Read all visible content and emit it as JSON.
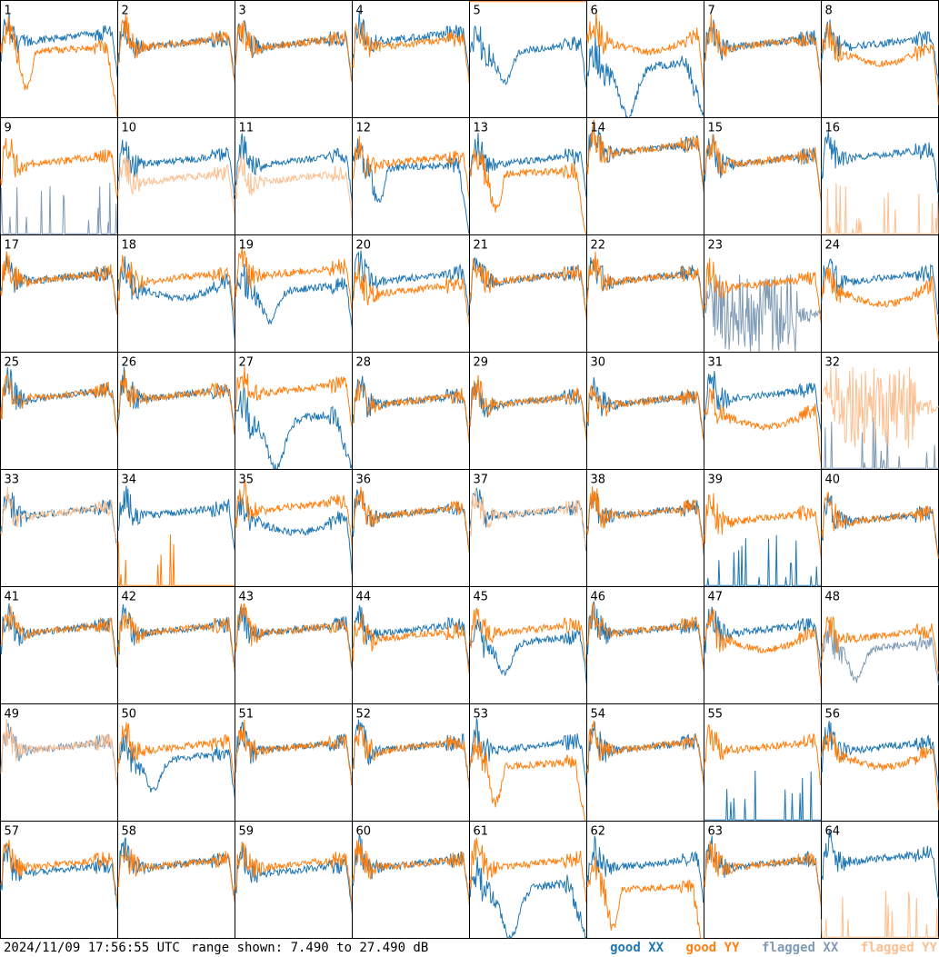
{
  "footer": {
    "timestamp": "2024/11/09 17:56:55 UTC",
    "range": "range shown: 7.490 to 27.490 dB"
  },
  "colors": {
    "good_xx": "#1f77b4",
    "good_yy": "#ff7f0e",
    "flagged_xx": "#7f9bb5",
    "flagged_yy": "#fdbf8f",
    "frame": "#000000"
  },
  "chart_data": {
    "type": "line",
    "title": "",
    "xlabel": "",
    "ylabel": "",
    "ylim": [
      7.49,
      27.49
    ],
    "grid": "8x8 small multiples, no gridlines",
    "legend": [
      {
        "key": "good_xx",
        "label": "good XX"
      },
      {
        "key": "good_yy",
        "label": "good YY"
      },
      {
        "key": "flagged_xx",
        "label": "flagged XX"
      },
      {
        "key": "flagged_yy",
        "label": "flagged YY"
      }
    ],
    "panels": [
      {
        "n": "1",
        "xx": "good",
        "yy": "good",
        "xx_shape": "nominal",
        "yy_shape": "droop_deep",
        "xx_level": 21,
        "yy_level": 19
      },
      {
        "n": "2",
        "xx": "good",
        "yy": "good",
        "xx_shape": "nominal",
        "yy_shape": "nominal",
        "xx_level": 20,
        "yy_level": 20
      },
      {
        "n": "3",
        "xx": "good",
        "yy": "good",
        "xx_shape": "nominal",
        "yy_shape": "nominal",
        "xx_level": 20,
        "yy_level": 20
      },
      {
        "n": "4",
        "xx": "good",
        "yy": "good",
        "xx_shape": "nominal",
        "yy_shape": "nominal",
        "xx_level": 21,
        "yy_level": 20
      },
      {
        "n": "5",
        "xx": "good",
        "yy": "good",
        "xx_shape": "dip",
        "yy_shape": "flat_top",
        "xx_level": 19,
        "yy_level": 27.3
      },
      {
        "n": "6",
        "xx": "good",
        "yy": "good",
        "xx_shape": "dip_deep",
        "yy_shape": "droop",
        "xx_level": 16,
        "yy_level": 21
      },
      {
        "n": "7",
        "xx": "good",
        "yy": "good",
        "xx_shape": "nominal",
        "yy_shape": "nominal",
        "xx_level": 20,
        "yy_level": 20
      },
      {
        "n": "8",
        "xx": "good",
        "yy": "good",
        "xx_shape": "nominal",
        "yy_shape": "droop",
        "xx_level": 20,
        "yy_level": 19
      },
      {
        "n": "9",
        "xx": "flagged",
        "yy": "good",
        "xx_shape": "spikes_low",
        "yy_shape": "nominal",
        "xx_level": 9,
        "yy_level": 20
      },
      {
        "n": "10",
        "xx": "good",
        "yy": "flagged",
        "xx_shape": "nominal",
        "yy_shape": "nominal",
        "xx_level": 20,
        "yy_level": 17
      },
      {
        "n": "11",
        "xx": "good",
        "yy": "flagged",
        "xx_shape": "nominal",
        "yy_shape": "nominal",
        "xx_level": 20,
        "yy_level": 17
      },
      {
        "n": "12",
        "xx": "good",
        "yy": "good",
        "xx_shape": "droop_deep",
        "yy_shape": "nominal",
        "xx_level": 19,
        "yy_level": 20
      },
      {
        "n": "13",
        "xx": "good",
        "yy": "good",
        "xx_shape": "nominal",
        "yy_shape": "droop_deep",
        "xx_level": 20,
        "yy_level": 18
      },
      {
        "n": "14",
        "xx": "good",
        "yy": "good",
        "xx_shape": "nominal",
        "yy_shape": "nominal",
        "xx_level": 22,
        "yy_level": 22
      },
      {
        "n": "15",
        "xx": "good",
        "yy": "good",
        "xx_shape": "nominal",
        "yy_shape": "nominal",
        "xx_level": 20,
        "yy_level": 20
      },
      {
        "n": "16",
        "xx": "good",
        "yy": "flagged",
        "xx_shape": "nominal",
        "yy_shape": "spikes_low",
        "xx_level": 21,
        "yy_level": 9
      },
      {
        "n": "17",
        "xx": "good",
        "yy": "good",
        "xx_shape": "nominal",
        "yy_shape": "nominal",
        "xx_level": 20,
        "yy_level": 20
      },
      {
        "n": "18",
        "xx": "good",
        "yy": "good",
        "xx_shape": "droop",
        "yy_shape": "nominal",
        "xx_level": 19,
        "yy_level": 20
      },
      {
        "n": "19",
        "xx": "good",
        "yy": "good",
        "xx_shape": "dip",
        "yy_shape": "nominal",
        "xx_level": 18,
        "yy_level": 21
      },
      {
        "n": "20",
        "xx": "good",
        "yy": "good",
        "xx_shape": "nominal",
        "yy_shape": "nominal",
        "xx_level": 20,
        "yy_level": 18
      },
      {
        "n": "21",
        "xx": "good",
        "yy": "good",
        "xx_shape": "nominal",
        "yy_shape": "nominal",
        "xx_level": 20,
        "yy_level": 20
      },
      {
        "n": "22",
        "xx": "good",
        "yy": "good",
        "xx_shape": "nominal",
        "yy_shape": "nominal",
        "xx_level": 20,
        "yy_level": 20
      },
      {
        "n": "23",
        "xx": "flagged",
        "yy": "good",
        "xx_shape": "noise",
        "yy_shape": "nominal",
        "xx_level": 14,
        "yy_level": 19
      },
      {
        "n": "24",
        "xx": "good",
        "yy": "good",
        "xx_shape": "nominal",
        "yy_shape": "droop",
        "xx_level": 20,
        "yy_level": 18
      },
      {
        "n": "25",
        "xx": "good",
        "yy": "good",
        "xx_shape": "nominal",
        "yy_shape": "nominal",
        "xx_level": 20,
        "yy_level": 20
      },
      {
        "n": "26",
        "xx": "good",
        "yy": "good",
        "xx_shape": "nominal",
        "yy_shape": "nominal",
        "xx_level": 20,
        "yy_level": 20
      },
      {
        "n": "27",
        "xx": "good",
        "yy": "good",
        "xx_shape": "dip_deep",
        "yy_shape": "nominal",
        "xx_level": 16,
        "yy_level": 21
      },
      {
        "n": "28",
        "xx": "good",
        "yy": "good",
        "xx_shape": "nominal",
        "yy_shape": "nominal",
        "xx_level": 19,
        "yy_level": 19
      },
      {
        "n": "29",
        "xx": "good",
        "yy": "good",
        "xx_shape": "nominal",
        "yy_shape": "nominal",
        "xx_level": 19,
        "yy_level": 19
      },
      {
        "n": "30",
        "xx": "good",
        "yy": "good",
        "xx_shape": "nominal",
        "yy_shape": "nominal",
        "xx_level": 19,
        "yy_level": 19
      },
      {
        "n": "31",
        "xx": "good",
        "yy": "good",
        "xx_shape": "nominal",
        "yy_shape": "droop",
        "xx_level": 20,
        "yy_level": 17
      },
      {
        "n": "32",
        "xx": "flagged",
        "yy": "flagged",
        "xx_shape": "spikes_low",
        "yy_shape": "noise",
        "xx_level": 9,
        "yy_level": 18
      },
      {
        "n": "33",
        "xx": "good",
        "yy": "flagged",
        "xx_shape": "nominal",
        "yy_shape": "nominal",
        "xx_level": 20,
        "yy_level": 20
      },
      {
        "n": "34",
        "xx": "good",
        "yy": "good",
        "xx_shape": "nominal",
        "yy_shape": "spikes_low",
        "xx_level": 20,
        "yy_level": 11
      },
      {
        "n": "35",
        "xx": "good",
        "yy": "good",
        "xx_shape": "droop",
        "yy_shape": "nominal",
        "xx_level": 19,
        "yy_level": 21
      },
      {
        "n": "36",
        "xx": "good",
        "yy": "good",
        "xx_shape": "nominal",
        "yy_shape": "nominal",
        "xx_level": 20,
        "yy_level": 20
      },
      {
        "n": "37",
        "xx": "good",
        "yy": "flagged",
        "xx_shape": "nominal",
        "yy_shape": "nominal",
        "xx_level": 20,
        "yy_level": 20
      },
      {
        "n": "38",
        "xx": "good",
        "yy": "good",
        "xx_shape": "nominal",
        "yy_shape": "nominal",
        "xx_level": 20,
        "yy_level": 20
      },
      {
        "n": "39",
        "xx": "good",
        "yy": "good",
        "xx_shape": "spikes_low",
        "yy_shape": "nominal",
        "xx_level": 9,
        "yy_level": 19
      },
      {
        "n": "40",
        "xx": "good",
        "yy": "good",
        "xx_shape": "nominal",
        "yy_shape": "nominal",
        "xx_level": 19,
        "yy_level": 19
      },
      {
        "n": "41",
        "xx": "good",
        "yy": "good",
        "xx_shape": "nominal",
        "yy_shape": "nominal",
        "xx_level": 20,
        "yy_level": 20
      },
      {
        "n": "42",
        "xx": "good",
        "yy": "good",
        "xx_shape": "nominal",
        "yy_shape": "nominal",
        "xx_level": 20,
        "yy_level": 20
      },
      {
        "n": "43",
        "xx": "good",
        "yy": "good",
        "xx_shape": "nominal",
        "yy_shape": "nominal",
        "xx_level": 20,
        "yy_level": 20
      },
      {
        "n": "44",
        "xx": "good",
        "yy": "good",
        "xx_shape": "nominal",
        "yy_shape": "nominal",
        "xx_level": 20,
        "yy_level": 19
      },
      {
        "n": "45",
        "xx": "good",
        "yy": "good",
        "xx_shape": "dip",
        "yy_shape": "nominal",
        "xx_level": 18,
        "yy_level": 20
      },
      {
        "n": "46",
        "xx": "good",
        "yy": "good",
        "xx_shape": "nominal",
        "yy_shape": "nominal",
        "xx_level": 20,
        "yy_level": 20
      },
      {
        "n": "47",
        "xx": "good",
        "yy": "good",
        "xx_shape": "nominal",
        "yy_shape": "droop",
        "xx_level": 20,
        "yy_level": 19
      },
      {
        "n": "48",
        "xx": "flagged",
        "yy": "good",
        "xx_shape": "dip",
        "yy_shape": "nominal",
        "xx_level": 17,
        "yy_level": 19
      },
      {
        "n": "49",
        "xx": "flagged",
        "yy": "flagged",
        "xx_shape": "nominal",
        "yy_shape": "nominal",
        "xx_level": 20,
        "yy_level": 20
      },
      {
        "n": "50",
        "xx": "good",
        "yy": "good",
        "xx_shape": "dip",
        "yy_shape": "nominal",
        "xx_level": 18,
        "yy_level": 20
      },
      {
        "n": "51",
        "xx": "good",
        "yy": "good",
        "xx_shape": "nominal",
        "yy_shape": "nominal",
        "xx_level": 20,
        "yy_level": 20
      },
      {
        "n": "52",
        "xx": "good",
        "yy": "good",
        "xx_shape": "nominal",
        "yy_shape": "nominal",
        "xx_level": 20,
        "yy_level": 20
      },
      {
        "n": "53",
        "xx": "good",
        "yy": "good",
        "xx_shape": "nominal",
        "yy_shape": "droop_deep",
        "xx_level": 20,
        "yy_level": 17
      },
      {
        "n": "54",
        "xx": "good",
        "yy": "good",
        "xx_shape": "nominal",
        "yy_shape": "nominal",
        "xx_level": 20,
        "yy_level": 20
      },
      {
        "n": "55",
        "xx": "good",
        "yy": "good",
        "xx_shape": "spikes_low",
        "yy_shape": "nominal",
        "xx_level": 11,
        "yy_level": 20
      },
      {
        "n": "56",
        "xx": "good",
        "yy": "good",
        "xx_shape": "nominal",
        "yy_shape": "droop",
        "xx_level": 20,
        "yy_level": 19
      },
      {
        "n": "57",
        "xx": "good",
        "yy": "good",
        "xx_shape": "nominal",
        "yy_shape": "nominal",
        "xx_level": 19,
        "yy_level": 20
      },
      {
        "n": "58",
        "xx": "good",
        "yy": "good",
        "xx_shape": "nominal",
        "yy_shape": "nominal",
        "xx_level": 20,
        "yy_level": 20
      },
      {
        "n": "59",
        "xx": "good",
        "yy": "good",
        "xx_shape": "nominal",
        "yy_shape": "nominal",
        "xx_level": 19,
        "yy_level": 20
      },
      {
        "n": "60",
        "xx": "good",
        "yy": "good",
        "xx_shape": "nominal",
        "yy_shape": "nominal",
        "xx_level": 20,
        "yy_level": 20
      },
      {
        "n": "61",
        "xx": "good",
        "yy": "good",
        "xx_shape": "dip_deep",
        "yy_shape": "nominal",
        "xx_level": 16,
        "yy_level": 20
      },
      {
        "n": "62",
        "xx": "good",
        "yy": "good",
        "xx_shape": "nominal",
        "yy_shape": "droop_deep",
        "xx_level": 20,
        "yy_level": 16
      },
      {
        "n": "63",
        "xx": "good",
        "yy": "good",
        "xx_shape": "nominal",
        "yy_shape": "nominal",
        "xx_level": 20,
        "yy_level": 20
      },
      {
        "n": "64",
        "xx": "good",
        "yy": "flagged",
        "xx_shape": "nominal",
        "yy_shape": "spikes_low",
        "xx_level": 21,
        "yy_level": 9
      }
    ]
  }
}
